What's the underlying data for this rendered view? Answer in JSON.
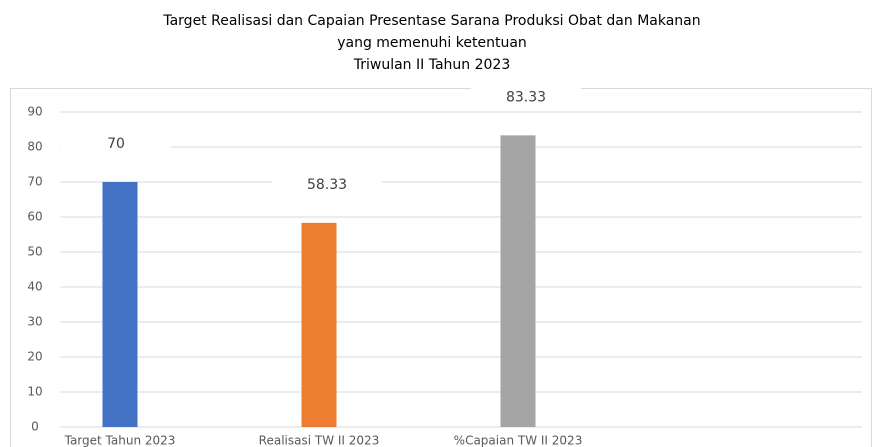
{
  "chart_data": {
    "type": "bar",
    "title": [
      "Target Realisasi dan Capaian Presentase Sarana Produksi Obat dan Makanan",
      "yang memenuhi ketentuan",
      "Triwulan II Tahun 2023"
    ],
    "categories": [
      "Target Tahun 2023",
      "Realisasi TW II 2023",
      "%Capaian TW II 2023"
    ],
    "values": [
      70,
      58.33,
      83.33
    ],
    "colors": [
      "#4472c4",
      "#ed7d31",
      "#a5a5a5"
    ],
    "ylim": [
      0,
      90
    ],
    "yticks": [
      0,
      10,
      20,
      30,
      40,
      50,
      60,
      70,
      80,
      90
    ],
    "grid": true
  }
}
